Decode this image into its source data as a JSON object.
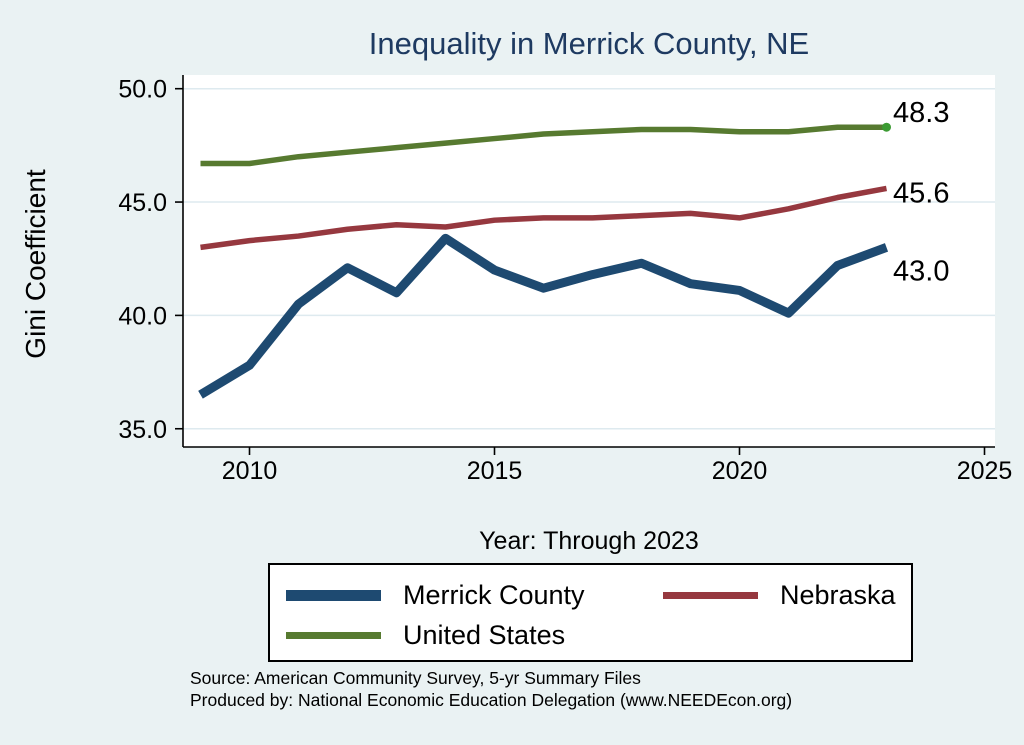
{
  "title": "Inequality in Merrick County, NE",
  "y_axis": {
    "label": "Gini Coefficient",
    "tick_labels": [
      "50.0",
      "45.0",
      "40.0",
      "35.0"
    ],
    "tick_values": [
      50.0,
      45.0,
      40.0,
      35.0
    ]
  },
  "x_axis": {
    "label": "Year: Through 2023",
    "tick_labels": [
      "2010",
      "2015",
      "2020",
      "2025"
    ],
    "tick_values": [
      2010,
      2015,
      2020,
      2025
    ]
  },
  "legend": {
    "items": [
      {
        "label": "Merrick County",
        "color": "#1E4A71",
        "thickness": "thick"
      },
      {
        "label": "Nebraska",
        "color": "#96383F",
        "thickness": "thin"
      },
      {
        "label": "United States",
        "color": "#577A30",
        "thickness": "thin"
      }
    ]
  },
  "source_line1": "Source: American Community Survey, 5-yr Summary Files",
  "source_line2": "Produced by: National Economic Education Delegation (www.NEEDEcon.org)",
  "colors": {
    "background": "#EAF2F3",
    "plot_background": "#FFFFFF",
    "gridline": "#DEEAEF",
    "axis": "#000000",
    "title": "#1E3A61",
    "merrick_county": "#1E4A71",
    "nebraska": "#96383F",
    "united_states": "#577A30",
    "us_end_marker": "#3C9B33"
  },
  "chart_data": {
    "type": "line",
    "title": "Inequality in Merrick County, NE",
    "xlabel": "Year: Through 2023",
    "ylabel": "Gini Coefficient",
    "x": [
      2009,
      2010,
      2011,
      2012,
      2013,
      2014,
      2015,
      2016,
      2017,
      2018,
      2019,
      2020,
      2021,
      2022,
      2023
    ],
    "series": [
      {
        "name": "Merrick County",
        "color": "#1E4A71",
        "line_width": 9,
        "values": [
          36.5,
          37.8,
          40.5,
          42.1,
          41.0,
          43.4,
          42.0,
          41.2,
          41.8,
          42.3,
          41.4,
          41.1,
          40.1,
          42.2,
          43.0
        ],
        "end_label": "43.0"
      },
      {
        "name": "Nebraska",
        "color": "#96383F",
        "line_width": 5.5,
        "values": [
          43.0,
          43.3,
          43.5,
          43.8,
          44.0,
          43.9,
          44.2,
          44.3,
          44.3,
          44.4,
          44.5,
          44.3,
          44.7,
          45.2,
          45.6
        ],
        "end_label": "45.6"
      },
      {
        "name": "United States",
        "color": "#577A30",
        "line_width": 5.5,
        "values": [
          46.7,
          46.7,
          47.0,
          47.2,
          47.4,
          47.6,
          47.8,
          48.0,
          48.1,
          48.2,
          48.2,
          48.1,
          48.1,
          48.3,
          48.3
        ],
        "end_label": "48.3",
        "end_marker": true
      }
    ],
    "y_ticks": [
      35.0,
      40.0,
      45.0,
      50.0
    ],
    "x_ticks": [
      2010,
      2015,
      2020,
      2025
    ],
    "ylim": [
      34.2,
      50.6
    ],
    "xlim": [
      2008.6,
      2025.2
    ],
    "grid": "horizontal",
    "legend_position": "bottom"
  }
}
